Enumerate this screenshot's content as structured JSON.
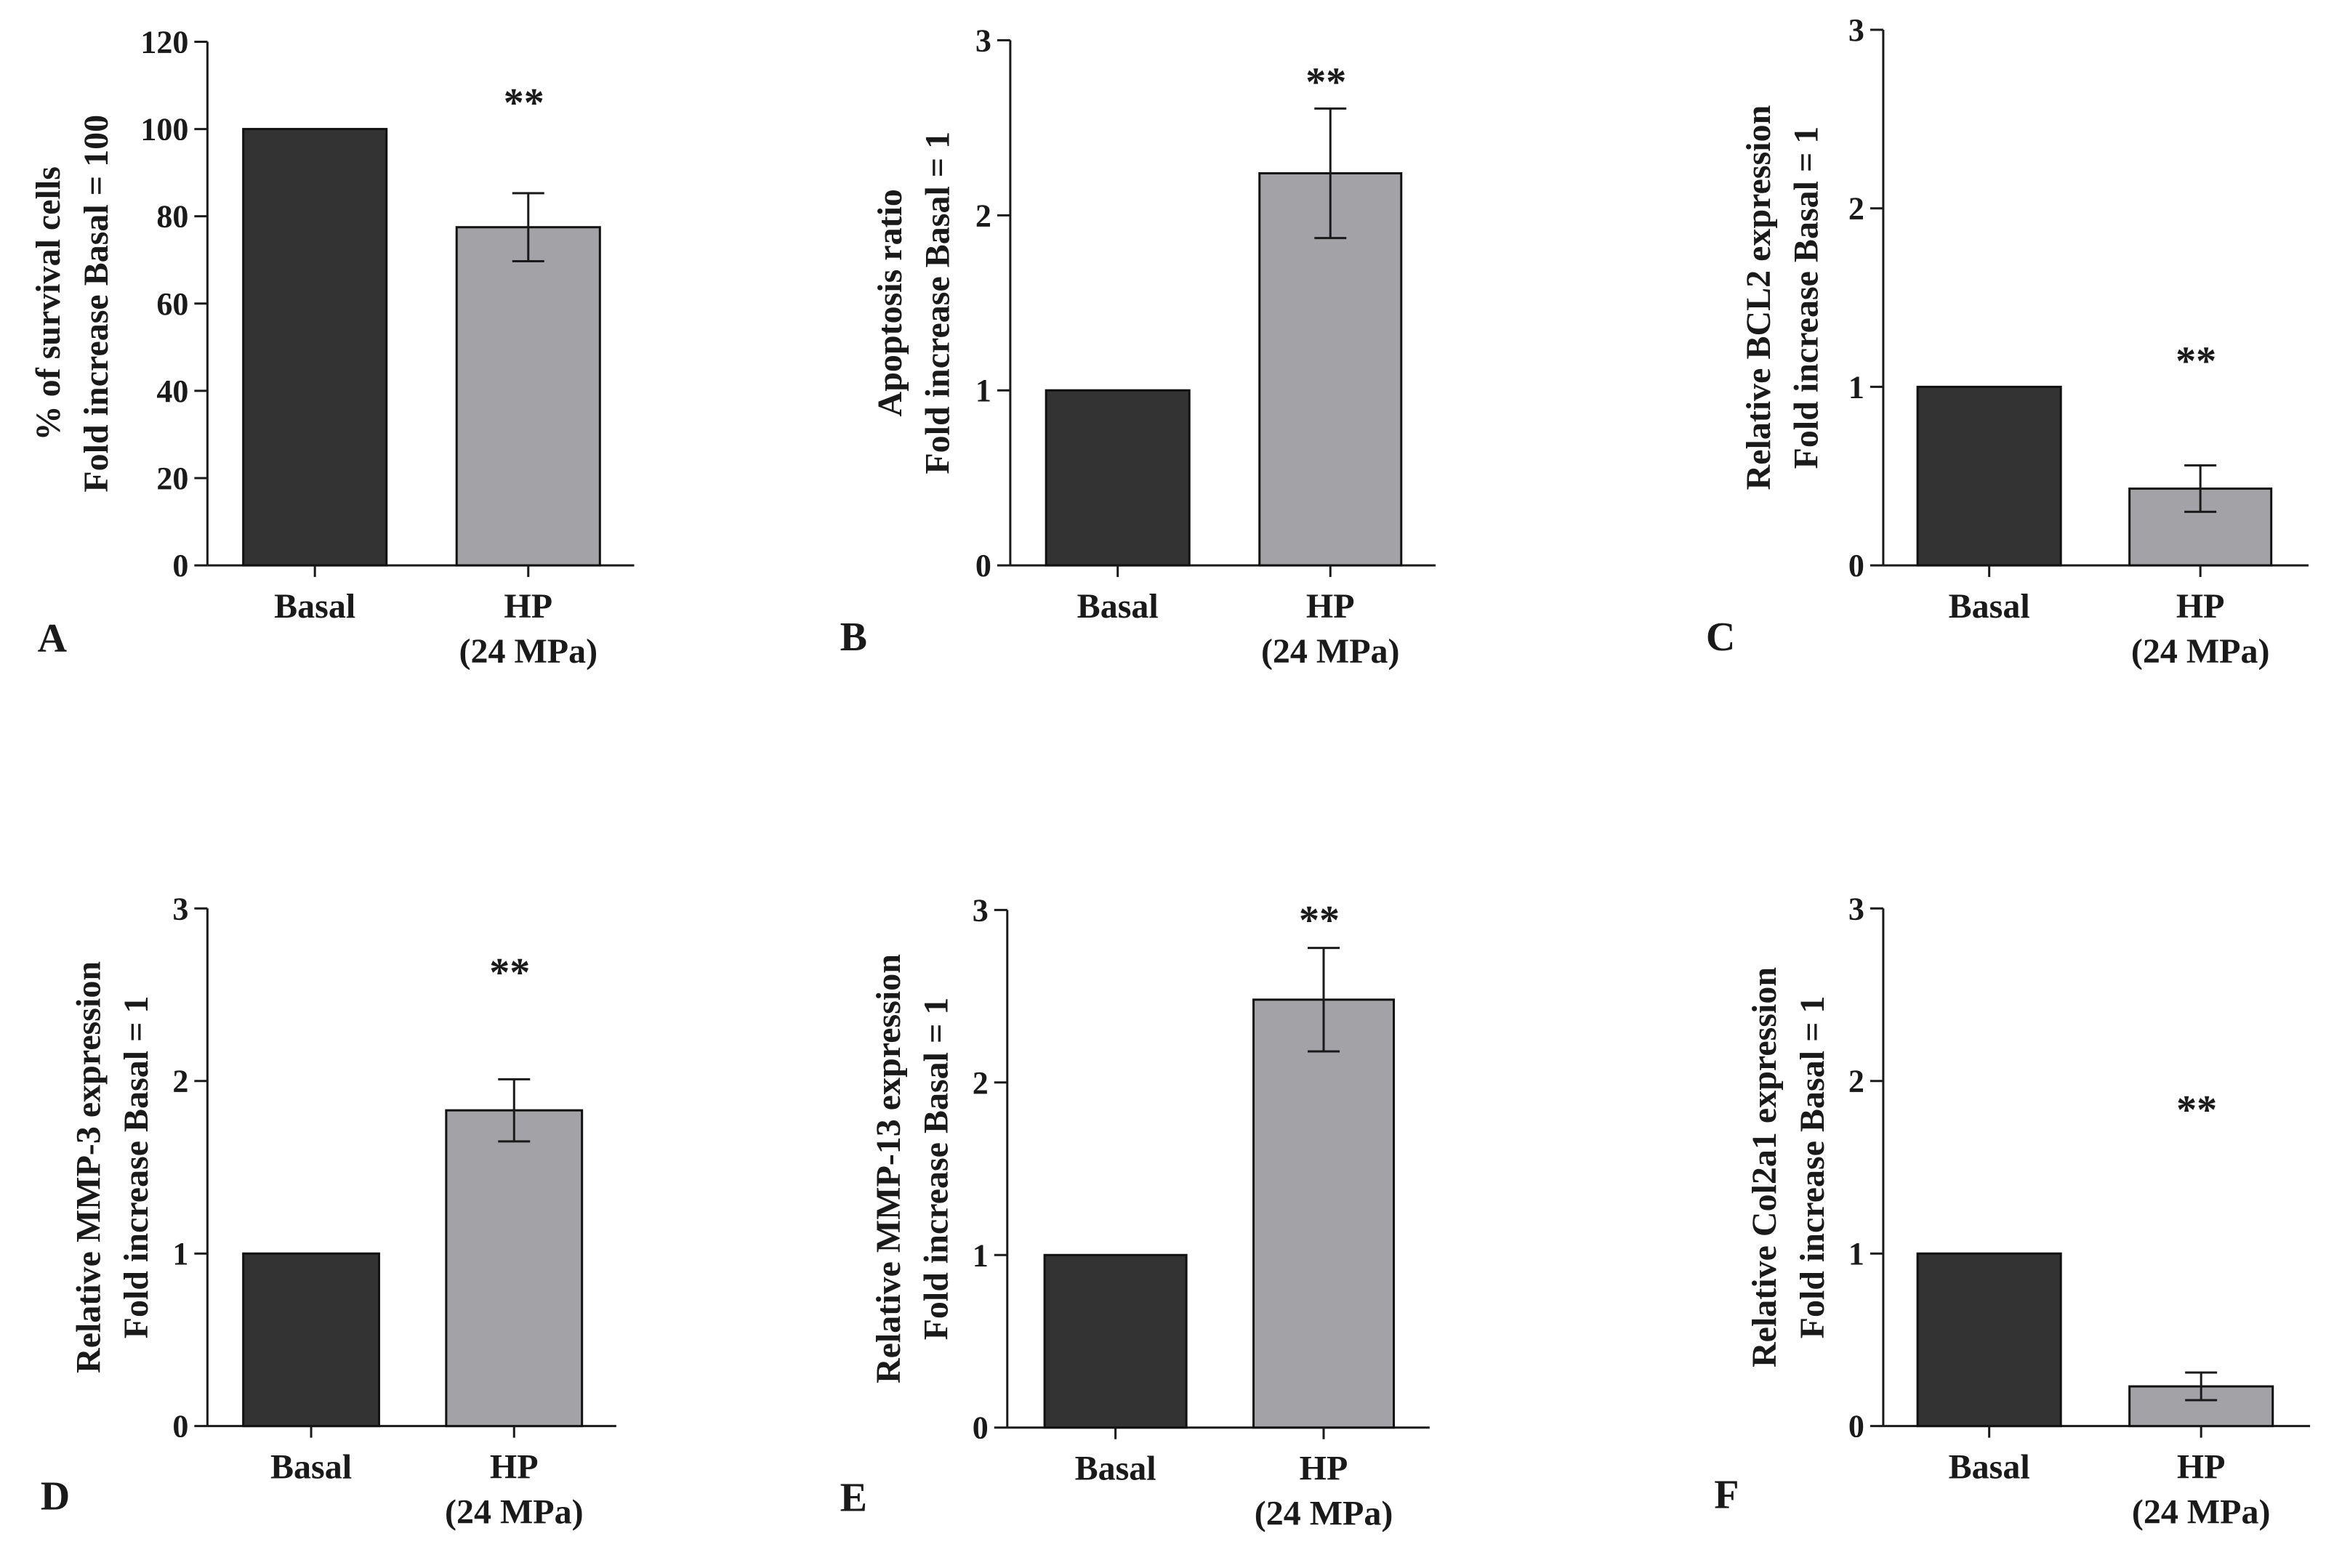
{
  "colors": {
    "basal": "#333333",
    "hp": "#a3a3a7"
  },
  "chart_data": [
    {
      "type": "bar",
      "panel": "A",
      "categories": [
        "Basal",
        "HP\n(24 MPa)"
      ],
      "values": [
        100,
        77.5
      ],
      "error": [
        0,
        7.8
      ],
      "ylim": [
        0,
        120
      ],
      "yticks": [
        0,
        20,
        40,
        60,
        80,
        100,
        120
      ],
      "ylabel": [
        "% of survival cells",
        "Fold increase Basal = 100"
      ],
      "annotation": "**"
    },
    {
      "type": "bar",
      "panel": "B",
      "categories": [
        "Basal",
        "HP\n(24 MPa)"
      ],
      "values": [
        1,
        2.24
      ],
      "error": [
        0,
        0.37
      ],
      "ylim": [
        0,
        3
      ],
      "yticks": [
        0,
        1,
        2,
        3
      ],
      "ylabel": [
        "Apoptosis ratio",
        "Fold increase Basal = 1"
      ],
      "annotation": "**"
    },
    {
      "type": "bar",
      "panel": "C",
      "categories": [
        "Basal",
        "HP\n(24 MPa)"
      ],
      "values": [
        1,
        0.43
      ],
      "error": [
        0,
        0.13
      ],
      "ylim": [
        0,
        3
      ],
      "yticks": [
        0,
        1,
        2,
        3
      ],
      "ylabel": [
        "Relative BCL2 expression",
        "Fold increase Basal = 1"
      ],
      "annotation": "**"
    },
    {
      "type": "bar",
      "panel": "D",
      "categories": [
        "Basal",
        "HP\n(24 MPa)"
      ],
      "values": [
        1,
        1.83
      ],
      "error": [
        0,
        0.18
      ],
      "ylim": [
        0,
        3
      ],
      "yticks": [
        0,
        1,
        2,
        3
      ],
      "ylabel": [
        "Relative MMP-3 expression",
        "Fold increase Basal = 1"
      ],
      "annotation": "**"
    },
    {
      "type": "bar",
      "panel": "E",
      "categories": [
        "Basal",
        "HP\n(24 MPa)"
      ],
      "values": [
        1,
        2.48
      ],
      "error": [
        0,
        0.3
      ],
      "ylim": [
        0,
        3
      ],
      "yticks": [
        0,
        1,
        2,
        3
      ],
      "ylabel": [
        "Relative MMP-13 expression",
        "Fold increase Basal = 1"
      ],
      "annotation": "**"
    },
    {
      "type": "bar",
      "panel": "F",
      "categories": [
        "Basal",
        "HP\n(24 MPa)"
      ],
      "values": [
        1,
        0.23
      ],
      "error": [
        0,
        0.08
      ],
      "ylim": [
        0,
        3
      ],
      "yticks": [
        0,
        1,
        2,
        3
      ],
      "ylabel": [
        "Relative Col2a1 expression",
        "Fold increase Basal = 1"
      ],
      "annotation": "**"
    }
  ]
}
